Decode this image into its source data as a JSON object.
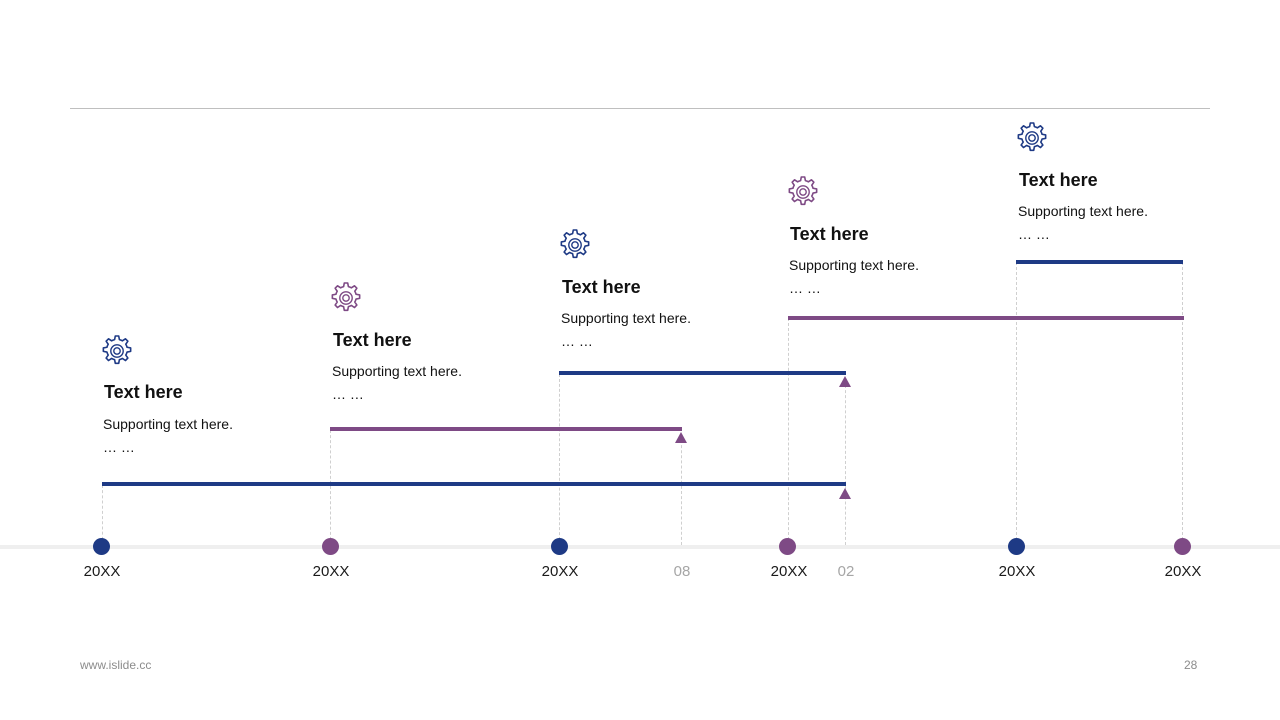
{
  "colors": {
    "navy": "#1e3a85",
    "purple": "#7e4a85",
    "axis": "#efefef",
    "muted": "#a6a6a6"
  },
  "milestones": [
    {
      "icon": "gear-icon",
      "title": "Text here",
      "text": "Supporting text here.",
      "ellipsis": "… …"
    },
    {
      "icon": "gear-icon",
      "title": "Text here",
      "text": "Supporting text here.",
      "ellipsis": "… …"
    },
    {
      "icon": "gear-icon",
      "title": "Text here",
      "text": "Supporting text here.",
      "ellipsis": "… …"
    },
    {
      "icon": "gear-icon",
      "title": "Text here",
      "text": "Supporting text here.",
      "ellipsis": "… …"
    },
    {
      "icon": "gear-icon",
      "title": "Text here",
      "text": "Supporting text here.",
      "ellipsis": "… …"
    }
  ],
  "axis_labels": [
    "20XX",
    "20XX",
    "20XX",
    "08",
    "20XX",
    "02",
    "20XX",
    "20XX"
  ],
  "footer": {
    "website": "www.islide.cc",
    "page_number": "28"
  }
}
